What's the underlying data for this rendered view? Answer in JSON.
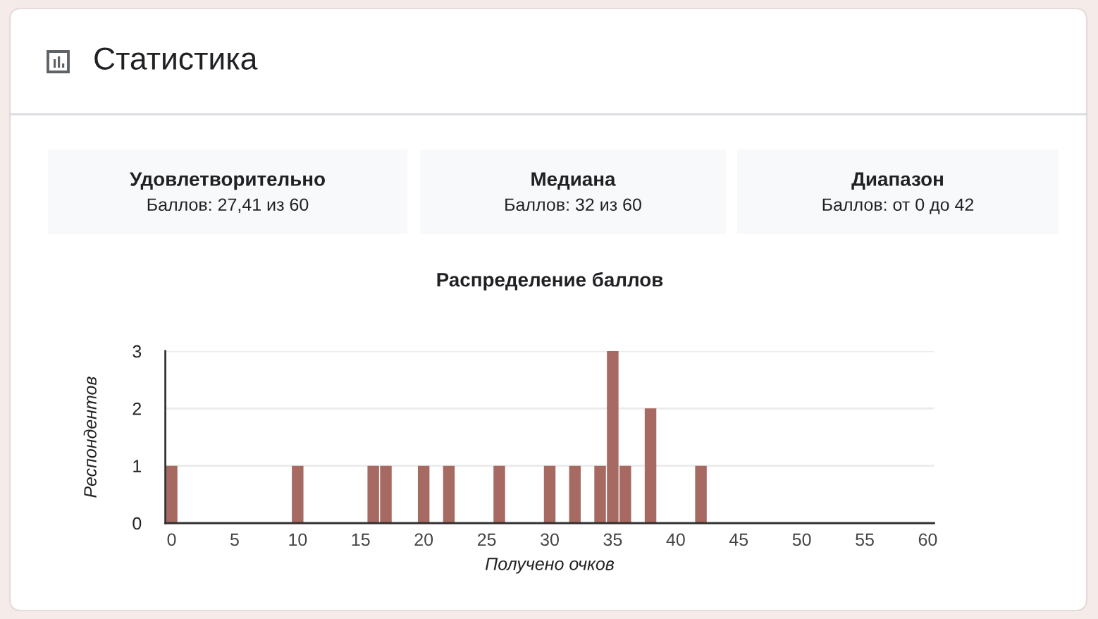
{
  "chart_data": [
    {
      "type": "other",
      "title": "Статистика"
    },
    {
      "type": "other",
      "title": "Удовлетворительно",
      "annotations": [
        "Баллов: 27,41 из 60"
      ]
    },
    {
      "type": "other",
      "title": "Медиана",
      "annotations": [
        "Баллов: 32 из 60"
      ]
    },
    {
      "type": "other",
      "title": "Диапазон",
      "annotations": [
        "Баллов: от 0 до 42"
      ]
    },
    {
      "type": "bar",
      "title": "Распределение баллов",
      "xlabel": "Получено очков",
      "ylabel": "Респондентов",
      "x": [
        0,
        10,
        16,
        17,
        20,
        22,
        26,
        30,
        32,
        34,
        35,
        36,
        38,
        42
      ],
      "values": [
        1,
        1,
        1,
        1,
        1,
        1,
        1,
        1,
        1,
        1,
        3,
        1,
        2,
        1
      ],
      "color": "#a66a62",
      "xlim": [
        -0.5,
        60.5
      ],
      "xticks": [
        0,
        5,
        10,
        15,
        20,
        25,
        30,
        35,
        40,
        45,
        50,
        55,
        60
      ],
      "ylim": [
        0,
        3
      ],
      "yticks": [
        0,
        1,
        2,
        3
      ],
      "grid": "y"
    }
  ]
}
